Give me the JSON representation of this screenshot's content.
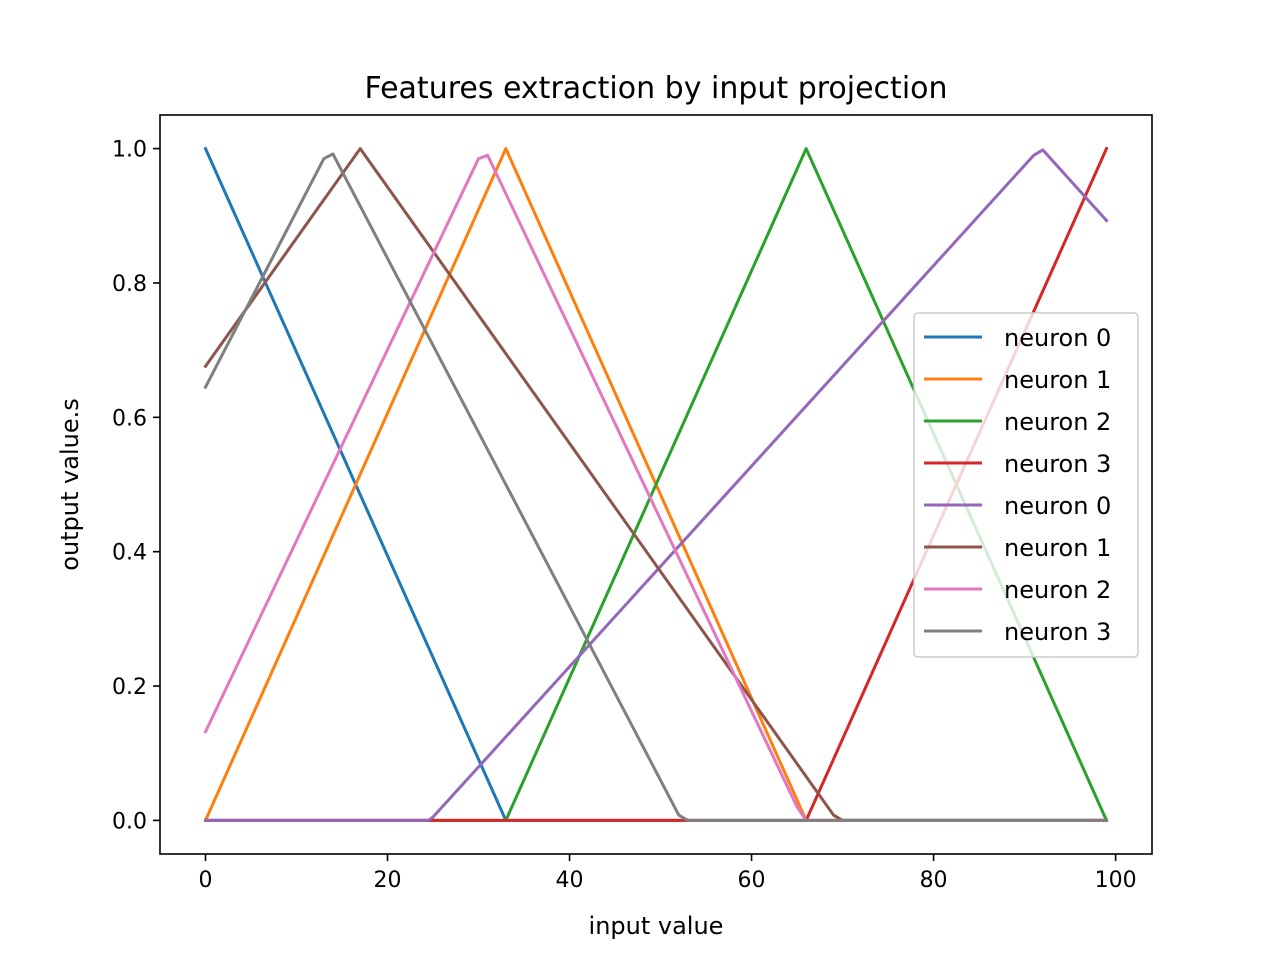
{
  "chart_data": {
    "type": "line",
    "title": "Features extraction by input projection",
    "xlabel": "input value",
    "ylabel": "output value.s",
    "xlim": [
      -5,
      104
    ],
    "ylim": [
      -0.05,
      1.05
    ],
    "xticks": [
      0,
      20,
      40,
      60,
      80,
      100
    ],
    "xtick_labels": [
      "0",
      "20",
      "40",
      "60",
      "80",
      "100"
    ],
    "yticks": [
      0.0,
      0.2,
      0.4,
      0.6,
      0.8,
      1.0
    ],
    "ytick_labels": [
      "0.0",
      "0.2",
      "0.4",
      "0.6",
      "0.8",
      "1.0"
    ],
    "grid": false,
    "legend_position": "center-right",
    "series": [
      {
        "name": "neuron 0",
        "color": "#1f77b4",
        "points": [
          [
            0,
            1.0
          ],
          [
            33,
            0.0
          ],
          [
            99,
            0.0
          ]
        ]
      },
      {
        "name": "neuron 1",
        "color": "#ff7f0e",
        "points": [
          [
            0,
            0.0
          ],
          [
            33,
            1.0
          ],
          [
            66,
            0.0
          ],
          [
            99,
            0.0
          ]
        ]
      },
      {
        "name": "neuron 2",
        "color": "#2ca02c",
        "points": [
          [
            0,
            0.0
          ],
          [
            33,
            0.0
          ],
          [
            66,
            1.0
          ],
          [
            99,
            0.0
          ]
        ]
      },
      {
        "name": "neuron 3",
        "color": "#d62728",
        "points": [
          [
            0,
            0.0
          ],
          [
            66,
            0.0
          ],
          [
            99,
            1.0
          ]
        ]
      },
      {
        "name": "neuron 0",
        "color": "#9467bd",
        "points": [
          [
            0,
            0.0
          ],
          [
            24.5,
            0.0
          ],
          [
            25,
            0.005
          ],
          [
            91,
            0.99
          ],
          [
            92,
            0.998
          ],
          [
            99,
            0.893
          ]
        ]
      },
      {
        "name": "neuron 1",
        "color": "#8c564b",
        "points": [
          [
            0,
            0.676
          ],
          [
            17,
            1.0
          ],
          [
            69,
            0.008
          ],
          [
            70,
            0.0
          ],
          [
            99,
            0.0
          ]
        ]
      },
      {
        "name": "neuron 2",
        "color": "#e377c2",
        "points": [
          [
            0,
            0.132
          ],
          [
            30,
            0.985
          ],
          [
            31,
            0.99
          ],
          [
            65,
            0.02
          ],
          [
            66,
            0.0
          ],
          [
            99,
            0.0
          ]
        ]
      },
      {
        "name": "neuron 3",
        "color": "#7f7f7f",
        "points": [
          [
            0,
            0.645
          ],
          [
            13,
            0.985
          ],
          [
            14,
            0.992
          ],
          [
            52,
            0.008
          ],
          [
            53,
            0.0
          ],
          [
            99,
            0.0
          ]
        ]
      }
    ]
  }
}
